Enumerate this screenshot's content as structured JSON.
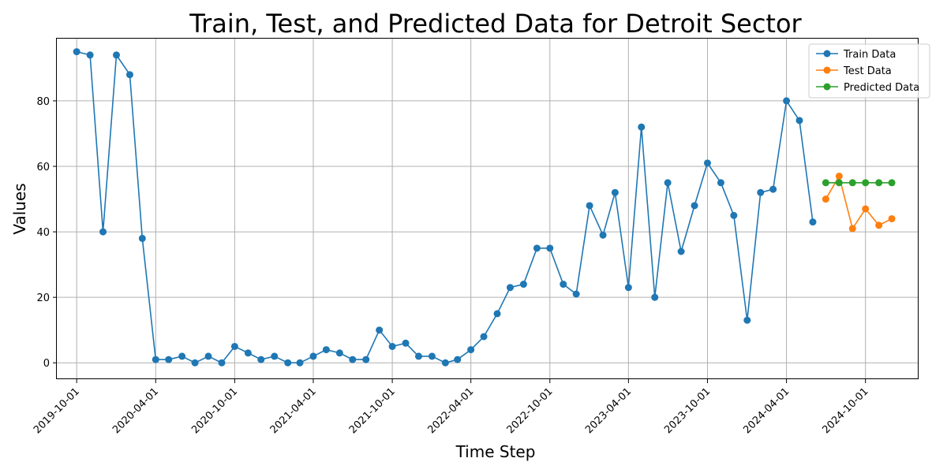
{
  "chart_data": {
    "type": "line",
    "title": "Train, Test, and Predicted Data for Detroit Sector",
    "xlabel": "Time Step",
    "ylabel": "Values",
    "ylim": [
      -5,
      99
    ],
    "x_range": [
      "2019-08-16",
      "2025-02-01"
    ],
    "x_ticks": [
      "2019-10-01",
      "2020-04-01",
      "2020-10-01",
      "2021-04-01",
      "2021-10-01",
      "2022-04-01",
      "2022-10-01",
      "2023-04-01",
      "2023-10-01",
      "2024-04-01",
      "2024-10-01"
    ],
    "y_ticks": [
      0,
      20,
      40,
      60,
      80
    ],
    "grid": true,
    "legend": "top-right",
    "series": [
      {
        "name": "Train Data",
        "color": "#1f77b4",
        "x": [
          "2019-10-01",
          "2019-11-01",
          "2019-12-01",
          "2020-01-01",
          "2020-02-01",
          "2020-03-01",
          "2020-04-01",
          "2020-05-01",
          "2020-06-01",
          "2020-07-01",
          "2020-08-01",
          "2020-09-01",
          "2020-10-01",
          "2020-11-01",
          "2020-12-01",
          "2021-01-01",
          "2021-02-01",
          "2021-03-01",
          "2021-04-01",
          "2021-05-01",
          "2021-06-01",
          "2021-07-01",
          "2021-08-01",
          "2021-09-01",
          "2021-10-01",
          "2021-11-01",
          "2021-12-01",
          "2022-01-01",
          "2022-02-01",
          "2022-03-01",
          "2022-04-01",
          "2022-05-01",
          "2022-06-01",
          "2022-07-01",
          "2022-08-01",
          "2022-09-01",
          "2022-10-01",
          "2022-11-01",
          "2022-12-01",
          "2023-01-01",
          "2023-02-01",
          "2023-03-01",
          "2023-04-01",
          "2023-05-01",
          "2023-06-01",
          "2023-07-01",
          "2023-08-01",
          "2023-09-01",
          "2023-10-01",
          "2023-11-01",
          "2023-12-01",
          "2024-01-01",
          "2024-02-01",
          "2024-03-01",
          "2024-04-01",
          "2024-05-01",
          "2024-06-01"
        ],
        "values": [
          95,
          94,
          40,
          94,
          88,
          38,
          1,
          1,
          2,
          0,
          2,
          0,
          5,
          3,
          1,
          2,
          0,
          0,
          2,
          4,
          3,
          1,
          1,
          10,
          5,
          6,
          2,
          2,
          0,
          1,
          4,
          8,
          15,
          23,
          24,
          35,
          35,
          24,
          21,
          48,
          39,
          52,
          23,
          72,
          20,
          55,
          34,
          48,
          61,
          55,
          45,
          13,
          52,
          53,
          80,
          74,
          43
        ]
      },
      {
        "name": "Test Data",
        "color": "#ff7f0e",
        "x": [
          "2024-07-01",
          "2024-08-01",
          "2024-09-01",
          "2024-10-01",
          "2024-11-01",
          "2024-12-01"
        ],
        "values": [
          50,
          57,
          41,
          47,
          42,
          44
        ]
      },
      {
        "name": "Predicted Data",
        "color": "#2ca02c",
        "x": [
          "2024-07-01",
          "2024-08-01",
          "2024-09-01",
          "2024-10-01",
          "2024-11-01",
          "2024-12-01"
        ],
        "values": [
          55,
          55,
          55,
          55,
          55,
          55
        ]
      }
    ]
  }
}
